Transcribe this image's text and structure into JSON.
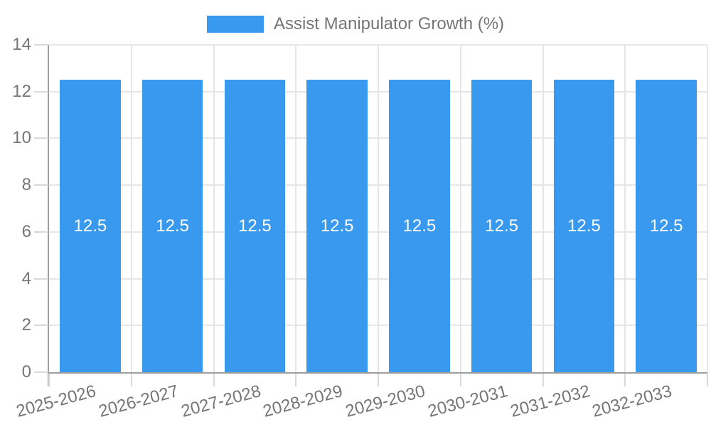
{
  "colors": {
    "bar": "#3899ee",
    "grid": "#e6e6e6",
    "tick": "#d9d9d9",
    "axis_line": "#9e9e9e",
    "axis_text": "#757575",
    "bar_value_text": "#ffffff",
    "background": "#ffffff"
  },
  "chart_data": {
    "type": "bar",
    "title": "",
    "xlabel": "",
    "ylabel": "",
    "legend_position": "top",
    "legend_label": "Assist Manipulator Growth (%)",
    "categories": [
      "2025-2026",
      "2026-2027",
      "2027-2028",
      "2028-2029",
      "2029-2030",
      "2030-2031",
      "2031-2032",
      "2032-2033"
    ],
    "values": [
      12.5,
      12.5,
      12.5,
      12.5,
      12.5,
      12.5,
      12.5,
      12.5
    ],
    "bar_labels": [
      "12.5",
      "12.5",
      "12.5",
      "12.5",
      "12.5",
      "12.5",
      "12.5",
      "12.5"
    ],
    "ylim": [
      0,
      14
    ],
    "ytick_step": 2,
    "ytick_labels": [
      "0",
      "2",
      "4",
      "6",
      "8",
      "10",
      "12",
      "14"
    ],
    "grid": true,
    "x_label_rotation_deg": -15
  }
}
